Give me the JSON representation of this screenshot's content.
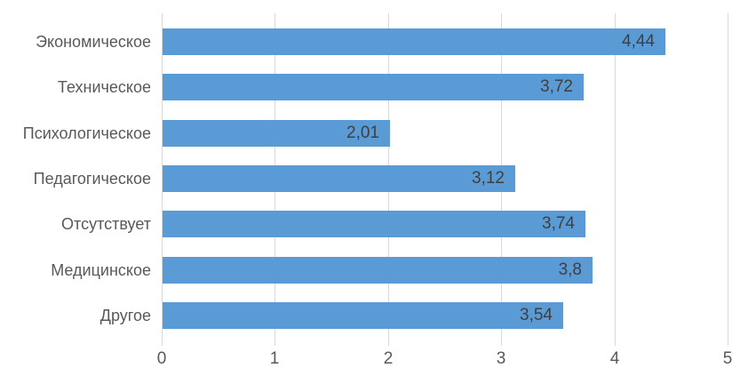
{
  "chart_data": {
    "type": "bar",
    "orientation": "horizontal",
    "title": "",
    "xlabel": "",
    "ylabel": "",
    "categories": [
      "Экономическое",
      "Техническое",
      "Психологическое",
      "Педагогическое",
      "Отсутствует",
      "Медицинское",
      "Другое"
    ],
    "values": [
      4.44,
      3.72,
      2.01,
      3.12,
      3.74,
      3.8,
      3.54
    ],
    "value_labels": [
      "4,44",
      "3,72",
      "2,01",
      "3,12",
      "3,74",
      "3,8",
      "3,54"
    ],
    "x_ticks": [
      0,
      1,
      2,
      3,
      4,
      5
    ],
    "x_tick_labels": [
      "0",
      "1",
      "2",
      "3",
      "4",
      "5"
    ],
    "xlim": [
      0,
      5
    ],
    "grid": true,
    "legend": false,
    "colors": {
      "bar": "#5B9BD5",
      "gridline": "#D9D9D9",
      "category_label": "#595959",
      "tick_label": "#595959",
      "value_label": "#3F3F3F",
      "background": "#FFFFFF"
    }
  }
}
